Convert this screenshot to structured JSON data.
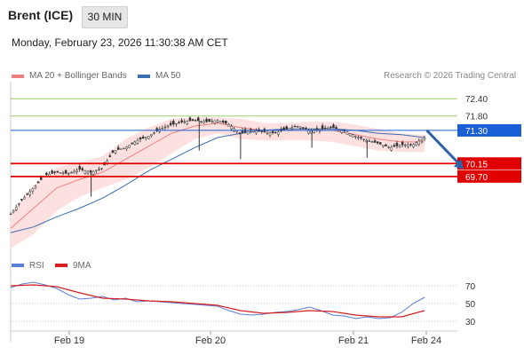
{
  "header": {
    "title": "Brent (ICE)",
    "interval": "30 MIN"
  },
  "datetime": "Monday, February 23, 2026 11:30:38 AM CET",
  "legend": {
    "ma_bb": "MA 20 + Bollinger Bands",
    "ma50": "MA 50",
    "credit": "Research © 2026 Trading Central"
  },
  "rsi_legend": {
    "rsi": "RSI",
    "ma9": "9MA"
  },
  "colors": {
    "bb_fill": "#fde0e0",
    "ma20": "#f08080",
    "ma50": "#3a6db3",
    "support": "#e00000",
    "pivot": "#1a5fd6",
    "resistance": "#9acd6a",
    "candle": "#333333",
    "rsi": "#5b7fd6",
    "rsi_ma": "#d62020",
    "arrow": "#2e62a8"
  },
  "chart_data": [
    {
      "type": "candlestick",
      "title": "Brent (ICE)",
      "timeframe": "30 MIN",
      "x_ticks": [
        "Feb 19",
        "Feb 20",
        "Feb 21",
        "Feb 24"
      ],
      "ylim": [
        67.2,
        72.9
      ],
      "price_points": [
        [
          0,
          68.4
        ],
        [
          5,
          68.9
        ],
        [
          10,
          69.3
        ],
        [
          15,
          69.75
        ],
        [
          20,
          69.85
        ],
        [
          25,
          69.8
        ],
        [
          30,
          69.95
        ],
        [
          35,
          69.85
        ],
        [
          40,
          70.0
        ],
        [
          45,
          70.6
        ],
        [
          50,
          70.7
        ],
        [
          55,
          70.95
        ],
        [
          60,
          71.1
        ],
        [
          65,
          71.35
        ],
        [
          70,
          71.5
        ],
        [
          75,
          71.6
        ],
        [
          80,
          71.65
        ],
        [
          85,
          71.6
        ],
        [
          90,
          71.65
        ],
        [
          95,
          71.5
        ],
        [
          100,
          71.2
        ],
        [
          105,
          71.3
        ],
        [
          110,
          71.25
        ],
        [
          115,
          71.2
        ],
        [
          120,
          71.35
        ],
        [
          125,
          71.45
        ],
        [
          130,
          71.3
        ],
        [
          135,
          71.35
        ],
        [
          140,
          71.4
        ],
        [
          145,
          71.3
        ],
        [
          150,
          71.1
        ],
        [
          155,
          70.95
        ],
        [
          160,
          70.85
        ],
        [
          165,
          70.7
        ],
        [
          170,
          70.8
        ],
        [
          175,
          70.8
        ],
        [
          180,
          71.05
        ]
      ],
      "ma50_points": [
        [
          0,
          67.75
        ],
        [
          10,
          67.95
        ],
        [
          20,
          68.3
        ],
        [
          30,
          68.6
        ],
        [
          40,
          68.95
        ],
        [
          50,
          69.4
        ],
        [
          60,
          69.9
        ],
        [
          70,
          70.3
        ],
        [
          80,
          70.7
        ],
        [
          90,
          71.05
        ],
        [
          100,
          71.2
        ],
        [
          110,
          71.3
        ],
        [
          120,
          71.35
        ],
        [
          130,
          71.35
        ],
        [
          140,
          71.35
        ],
        [
          150,
          71.3
        ],
        [
          160,
          71.2
        ],
        [
          170,
          71.15
        ],
        [
          180,
          71.05
        ]
      ],
      "ma20_points": [
        [
          0,
          67.9
        ],
        [
          10,
          68.6
        ],
        [
          20,
          69.3
        ],
        [
          30,
          69.6
        ],
        [
          40,
          69.85
        ],
        [
          50,
          70.3
        ],
        [
          60,
          70.75
        ],
        [
          70,
          71.2
        ],
        [
          80,
          71.45
        ],
        [
          90,
          71.55
        ],
        [
          100,
          71.4
        ],
        [
          110,
          71.3
        ],
        [
          120,
          71.3
        ],
        [
          130,
          71.3
        ],
        [
          140,
          71.3
        ],
        [
          150,
          71.15
        ],
        [
          160,
          71.0
        ],
        [
          170,
          70.9
        ],
        [
          180,
          70.9
        ]
      ],
      "bb_upper": [
        [
          0,
          68.4
        ],
        [
          10,
          69.4
        ],
        [
          20,
          70.0
        ],
        [
          30,
          70.2
        ],
        [
          40,
          70.4
        ],
        [
          50,
          71.0
        ],
        [
          60,
          71.4
        ],
        [
          70,
          71.7
        ],
        [
          80,
          71.75
        ],
        [
          90,
          71.75
        ],
        [
          100,
          71.7
        ],
        [
          110,
          71.55
        ],
        [
          120,
          71.55
        ],
        [
          130,
          71.6
        ],
        [
          140,
          71.6
        ],
        [
          150,
          71.5
        ],
        [
          160,
          71.35
        ],
        [
          170,
          71.2
        ],
        [
          180,
          71.15
        ]
      ],
      "bb_lower": [
        [
          0,
          67.2
        ],
        [
          10,
          67.7
        ],
        [
          20,
          68.5
        ],
        [
          30,
          69.0
        ],
        [
          40,
          69.3
        ],
        [
          50,
          69.6
        ],
        [
          60,
          70.0
        ],
        [
          70,
          70.5
        ],
        [
          80,
          71.0
        ],
        [
          90,
          71.2
        ],
        [
          100,
          71.0
        ],
        [
          110,
          70.95
        ],
        [
          120,
          70.95
        ],
        [
          130,
          70.95
        ],
        [
          140,
          70.9
        ],
        [
          150,
          70.75
        ],
        [
          160,
          70.6
        ],
        [
          170,
          70.55
        ],
        [
          180,
          70.55
        ]
      ],
      "levels": [
        {
          "value": 72.4,
          "label": "72.40",
          "kind": "resistance"
        },
        {
          "value": 71.8,
          "label": "71.80",
          "kind": "resistance"
        },
        {
          "value": 71.3,
          "label": "71.30",
          "kind": "pivot"
        },
        {
          "value": 70.15,
          "label": "70.15",
          "kind": "support"
        },
        {
          "value": 69.7,
          "label": "69.70",
          "kind": "support"
        }
      ],
      "arrow": {
        "from": [
          181,
          71.3
        ],
        "to": [
          197,
          69.95
        ]
      }
    },
    {
      "type": "line",
      "title": "RSI",
      "ylim": [
        20,
        80
      ],
      "y_ticks": [
        70,
        50,
        30
      ],
      "series": [
        {
          "name": "RSI",
          "values": [
            [
              0,
              68
            ],
            [
              5,
              72
            ],
            [
              10,
              74
            ],
            [
              15,
              71
            ],
            [
              20,
              67
            ],
            [
              25,
              60
            ],
            [
              30,
              55
            ],
            [
              35,
              56
            ],
            [
              40,
              58
            ],
            [
              45,
              54
            ],
            [
              50,
              56
            ],
            [
              55,
              52
            ],
            [
              60,
              53
            ],
            [
              65,
              52
            ],
            [
              70,
              51
            ],
            [
              75,
              50
            ],
            [
              80,
              49
            ],
            [
              85,
              48
            ],
            [
              90,
              47
            ],
            [
              95,
              42
            ],
            [
              100,
              38
            ],
            [
              105,
              37
            ],
            [
              110,
              38
            ],
            [
              115,
              40
            ],
            [
              120,
              41
            ],
            [
              125,
              43
            ],
            [
              130,
              46
            ],
            [
              135,
              42
            ],
            [
              140,
              37
            ],
            [
              145,
              36
            ],
            [
              150,
              33
            ],
            [
              155,
              35
            ],
            [
              160,
              33
            ],
            [
              165,
              34
            ],
            [
              170,
              40
            ],
            [
              175,
              50
            ],
            [
              180,
              57
            ]
          ]
        },
        {
          "name": "9MA",
          "values": [
            [
              0,
              70
            ],
            [
              10,
              71
            ],
            [
              20,
              69
            ],
            [
              30,
              62
            ],
            [
              40,
              56
            ],
            [
              50,
              55
            ],
            [
              60,
              53
            ],
            [
              70,
              52
            ],
            [
              80,
              50
            ],
            [
              90,
              48
            ],
            [
              100,
              42
            ],
            [
              110,
              39
            ],
            [
              120,
              40
            ],
            [
              130,
              42
            ],
            [
              140,
              41
            ],
            [
              150,
              37
            ],
            [
              160,
              35
            ],
            [
              170,
              35
            ],
            [
              180,
              42
            ]
          ]
        }
      ]
    }
  ]
}
